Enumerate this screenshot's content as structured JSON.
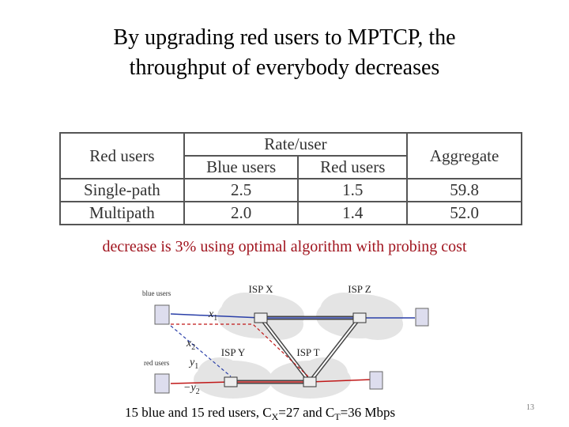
{
  "header": {
    "title_lines": [
      "By upgrading red users to MPTCP, the",
      "throughput of everybody decreases"
    ]
  },
  "table": {
    "header": {
      "first": "Red users",
      "group": "Rate/user",
      "sub": [
        "Blue users",
        "Red users"
      ],
      "last": "Aggregate"
    },
    "rows": [
      [
        "Single-path",
        "2.5",
        "1.5",
        "59.8"
      ],
      [
        "Multipath",
        "2.0",
        "1.4",
        "52.0"
      ]
    ]
  },
  "note": "decrease is 3% using optimal algorithm with probing cost",
  "diagram": {
    "user_labels": [
      "blue users",
      "red users"
    ],
    "isps": [
      "ISP X",
      "ISP Z",
      "ISP Y",
      "ISP T"
    ],
    "paths": [
      {
        "text": "x",
        "sub": "1"
      },
      {
        "text": "x",
        "sub": "2"
      },
      {
        "text": "y",
        "sub": "1"
      },
      {
        "text": "−y",
        "sub": "2"
      }
    ]
  },
  "caption": {
    "parts": [
      {
        "text": "15 blue and 15 red users,  C"
      },
      {
        "sub": "X"
      },
      {
        "text": "=27 and C"
      },
      {
        "sub": "T"
      },
      {
        "text": "=36 Mbps"
      }
    ]
  },
  "page_number": "13"
}
